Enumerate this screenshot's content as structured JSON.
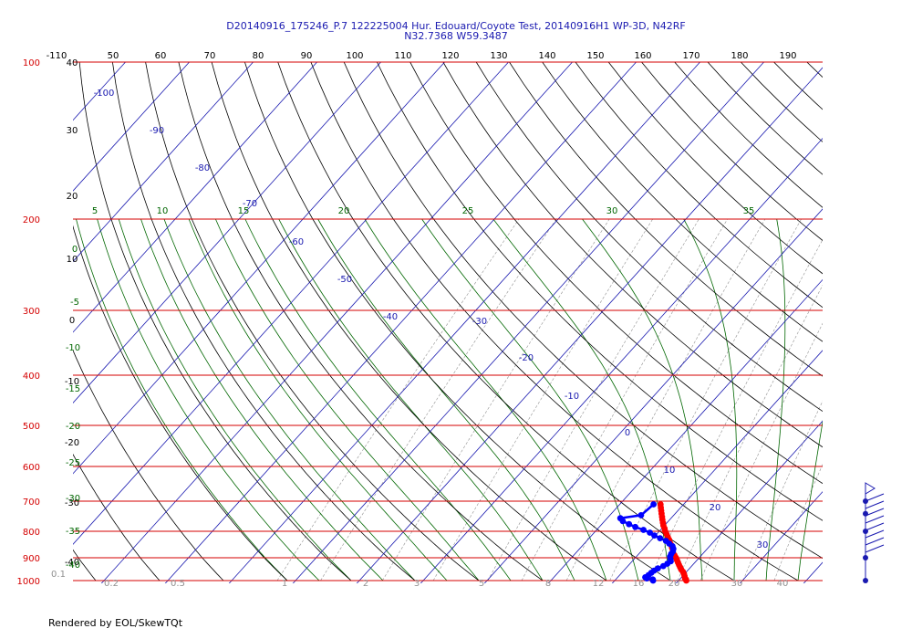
{
  "title_line1": "D20140916_175246_P.7 122225004 Hur. Edouard/Coyote Test, 20140916H1 WP-3D, N42RF",
  "title_line2": "N32.7368 W59.3487",
  "footer": "Rendered by EOL/SkewTQt",
  "colors": {
    "isobar": "#d40000",
    "isotherm": "#1a1ab0",
    "dry_adiabat": "#000000",
    "moist_adiabat": "#006600",
    "mixing_ratio": "#909090",
    "temperature_trace": "#ff0000",
    "dewpoint_trace": "#0000ff",
    "wind_barb": "#1a1ab0"
  },
  "chart_data": {
    "type": "skew-t log-p",
    "pressure_axis_labels": [
      "100",
      "200",
      "300",
      "400",
      "500",
      "600",
      "700",
      "800",
      "900",
      "1000"
    ],
    "temperature_axis_labels": [
      "-110",
      "50",
      "60",
      "70",
      "80",
      "90",
      "100",
      "110",
      "120",
      "130",
      "140",
      "150",
      "160",
      "170",
      "180",
      "190"
    ],
    "isotherm_labels": [
      "-100",
      "-90",
      "-80",
      "-70",
      "-60",
      "-50",
      "-40",
      "-30",
      "-20",
      "-10",
      "0",
      "10",
      "20",
      "30"
    ],
    "dry_adiabat_labels": [
      "40",
      "30",
      "20",
      "10",
      "0",
      "-10",
      "-20",
      "-30",
      "-40"
    ],
    "moist_adiabat_labels": [
      "5",
      "10",
      "15",
      "20",
      "25",
      "30",
      "35",
      "0",
      "-5",
      "-10",
      "-15",
      "-20",
      "-25",
      "-30",
      "-35",
      "-40"
    ],
    "mixing_ratio_labels": [
      "0.1",
      "0.2",
      "0.5",
      "1",
      "2",
      "3",
      "5",
      "8",
      "12",
      "16",
      "20",
      "30",
      "40"
    ],
    "temperature_profile": {
      "name": "Temperature",
      "points": [
        [
          1000,
          22.5
        ],
        [
          995,
          22.3
        ],
        [
          990,
          22.0
        ],
        [
          980,
          21.6
        ],
        [
          970,
          21.2
        ],
        [
          960,
          20.7
        ],
        [
          950,
          20.1
        ],
        [
          940,
          19.6
        ],
        [
          930,
          19.1
        ],
        [
          920,
          18.6
        ],
        [
          910,
          18.1
        ],
        [
          900,
          17.6
        ],
        [
          890,
          17.0
        ],
        [
          880,
          16.4
        ],
        [
          870,
          16.0
        ],
        [
          860,
          15.5
        ],
        [
          850,
          15.0
        ],
        [
          840,
          14.4
        ],
        [
          830,
          13.9
        ],
        [
          820,
          13.3
        ],
        [
          810,
          12.7
        ],
        [
          800,
          12.1
        ],
        [
          790,
          11.6
        ],
        [
          780,
          11.0
        ],
        [
          770,
          10.5
        ],
        [
          760,
          10.0
        ],
        [
          750,
          9.5
        ],
        [
          740,
          9.0
        ],
        [
          730,
          8.5
        ],
        [
          720,
          8.0
        ],
        [
          710,
          7.5
        ]
      ]
    },
    "dewpoint_profile": {
      "name": "Dewpoint",
      "points": [
        [
          1000,
          17.3
        ],
        [
          995,
          17.1
        ],
        [
          990,
          16.0
        ],
        [
          985,
          15.6
        ],
        [
          975,
          15.8
        ],
        [
          965,
          15.9
        ],
        [
          955,
          16.0
        ],
        [
          945,
          16.3
        ],
        [
          935,
          16.8
        ],
        [
          925,
          17.1
        ],
        [
          915,
          17.3
        ],
        [
          905,
          16.9
        ],
        [
          895,
          16.5
        ],
        [
          885,
          16.3
        ],
        [
          875,
          16.2
        ],
        [
          865,
          15.9
        ],
        [
          855,
          15.4
        ],
        [
          845,
          14.5
        ],
        [
          835,
          13.6
        ],
        [
          825,
          12.3
        ],
        [
          815,
          11.0
        ],
        [
          805,
          9.9
        ],
        [
          795,
          8.5
        ],
        [
          785,
          6.8
        ],
        [
          775,
          5.4
        ],
        [
          765,
          4.0
        ],
        [
          755,
          3.2
        ],
        [
          745,
          6.0
        ],
        [
          710,
          6.4
        ]
      ]
    },
    "wind_profile_pressures": [
      1000,
      900,
      800,
      740,
      700
    ]
  }
}
